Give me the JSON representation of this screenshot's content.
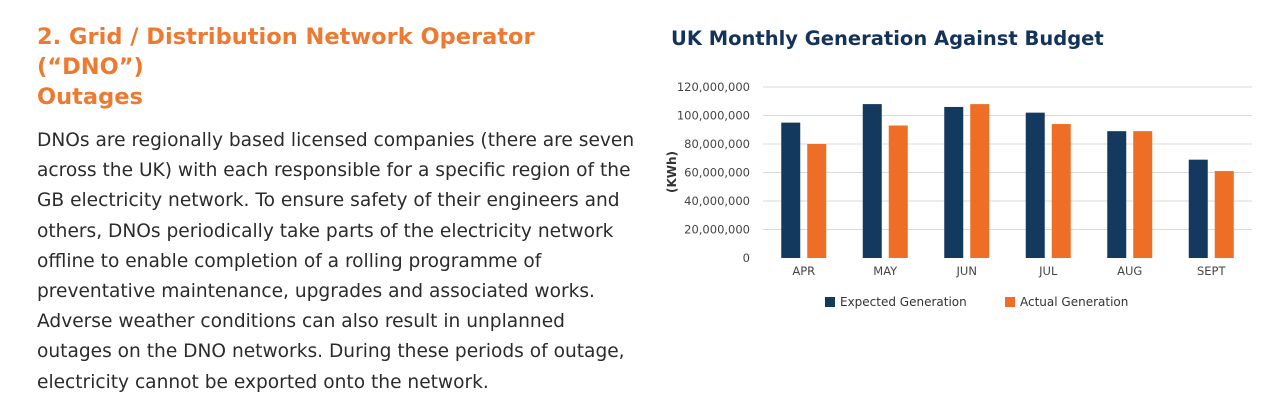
{
  "section": {
    "heading_line1": "2. Grid / Distribution Network Operator (“DNO”)",
    "heading_line2": "Outages",
    "body": "DNOs are regionally based licensed companies (there are seven across the UK) with each responsible for a specific region of the GB electricity network. To ensure safety of their engineers and others, DNOs periodically take parts of the electricity network offline to enable completion of a rolling programme of preventative maintenance, upgrades and associated works. Adverse weather conditions can also result in unplanned outages on the DNO networks. During these periods of outage, electricity cannot be exported onto the network."
  },
  "colors": {
    "heading": "#ee7a31",
    "body_text": "#2b2b2b",
    "chart_title": "#14335a",
    "expected": "#14395f",
    "actual": "#ee6e25",
    "grid": "#d9d9d9"
  },
  "chart_data": {
    "type": "bar",
    "title": "UK Monthly Generation Against Budget",
    "xlabel": "",
    "ylabel": "(KWh)",
    "categories": [
      "APR",
      "MAY",
      "JUN",
      "JUL",
      "AUG",
      "SEPT"
    ],
    "series": [
      {
        "name": "Expected Generation",
        "color": "#14395f",
        "values": [
          95000000,
          108000000,
          106000000,
          102000000,
          89000000,
          69000000
        ]
      },
      {
        "name": "Actual Generation",
        "color": "#ee6e25",
        "values": [
          80000000,
          93000000,
          108000000,
          94000000,
          89000000,
          61000000
        ]
      }
    ],
    "ylim": [
      0,
      120000000
    ],
    "yticks": [
      0,
      20000000,
      40000000,
      60000000,
      80000000,
      100000000,
      120000000
    ],
    "ytick_labels": [
      "0",
      "20,000,000",
      "40,000,000",
      "60,000,000",
      "80,000,000",
      "100,000,000",
      "120,000,000"
    ],
    "grid": true,
    "legend_position": "bottom"
  }
}
